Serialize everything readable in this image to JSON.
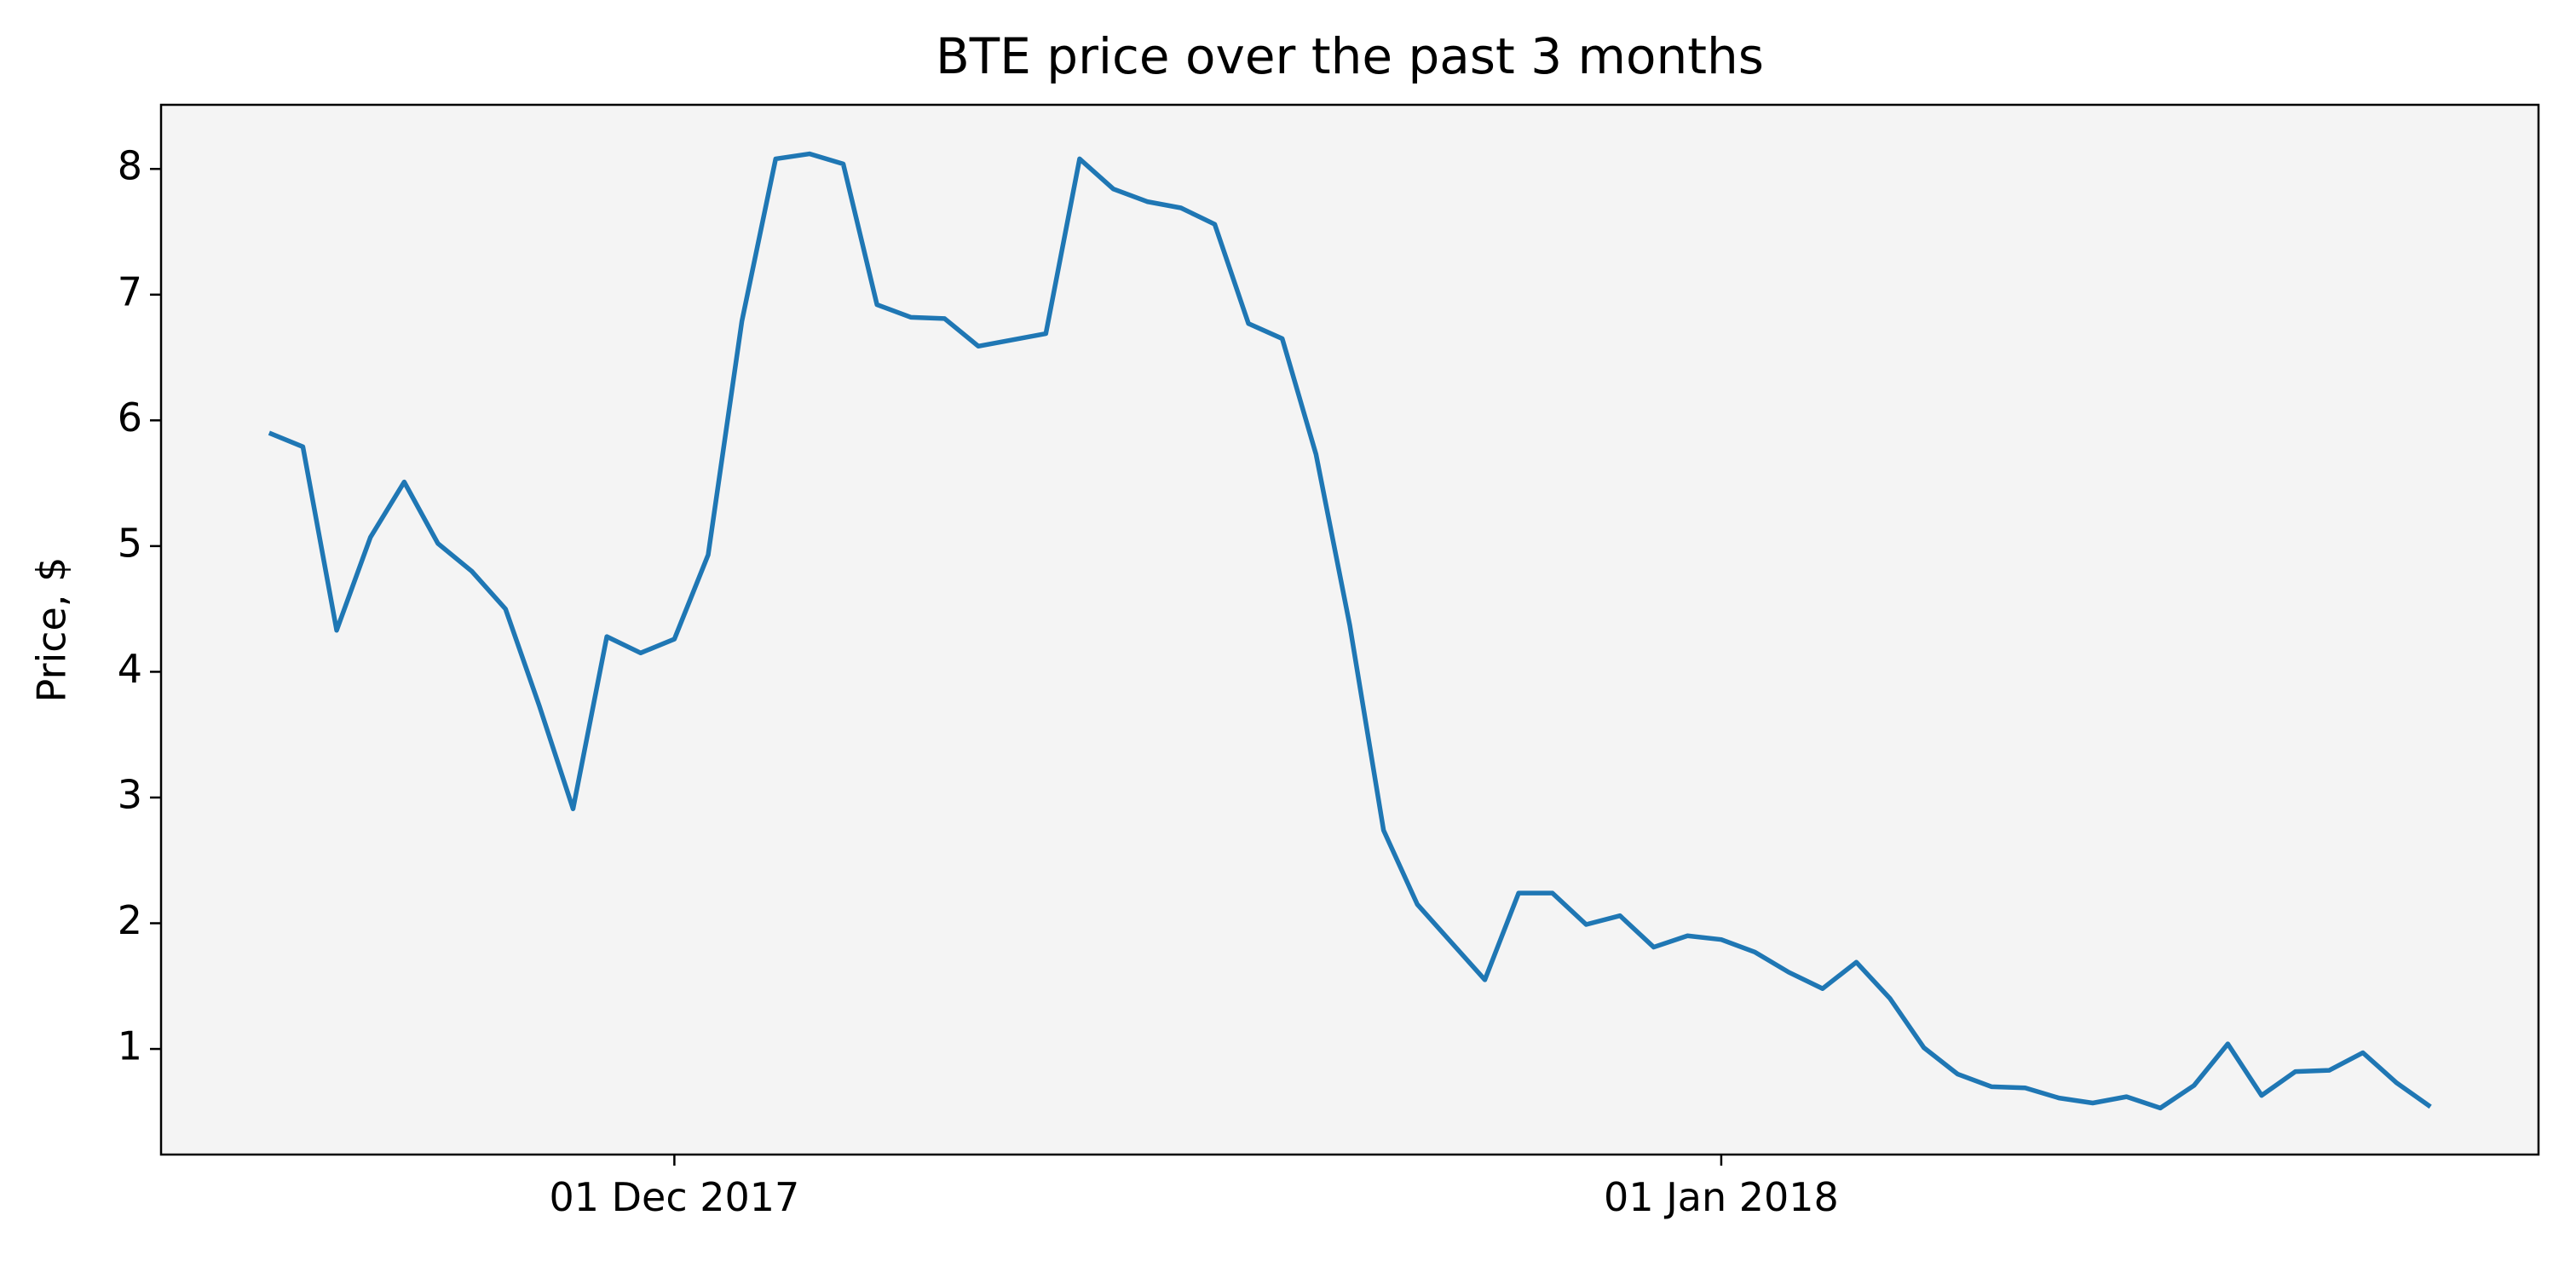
{
  "chart_data": {
    "type": "line",
    "title": "BTE price over the past 3 months",
    "ylabel": "Price, $",
    "x": [
      "2017-11-19",
      "2017-11-20",
      "2017-11-21",
      "2017-11-22",
      "2017-11-23",
      "2017-11-24",
      "2017-11-25",
      "2017-11-26",
      "2017-11-27",
      "2017-11-28",
      "2017-11-29",
      "2017-11-30",
      "2017-12-01",
      "2017-12-02",
      "2017-12-03",
      "2017-12-04",
      "2017-12-05",
      "2017-12-06",
      "2017-12-07",
      "2017-12-08",
      "2017-12-09",
      "2017-12-10",
      "2017-12-11",
      "2017-12-12",
      "2017-12-13",
      "2017-12-14",
      "2017-12-15",
      "2017-12-16",
      "2017-12-17",
      "2017-12-18",
      "2017-12-19",
      "2017-12-20",
      "2017-12-21",
      "2017-12-22",
      "2017-12-23",
      "2017-12-24",
      "2017-12-25",
      "2017-12-26",
      "2017-12-27",
      "2017-12-28",
      "2017-12-29",
      "2017-12-30",
      "2017-12-31",
      "2018-01-01",
      "2018-01-02",
      "2018-01-03",
      "2018-01-04",
      "2018-01-05",
      "2018-01-06",
      "2018-01-07",
      "2018-01-08",
      "2018-01-09",
      "2018-01-10",
      "2018-01-11",
      "2018-01-12",
      "2018-01-13",
      "2018-01-14",
      "2018-01-15",
      "2018-01-16",
      "2018-01-17",
      "2018-01-18",
      "2018-01-19",
      "2018-01-20",
      "2018-01-21",
      "2018-01-22"
    ],
    "series": [
      {
        "name": "BTE",
        "color": "#1f77b4",
        "values": [
          5.9,
          5.79,
          4.33,
          5.07,
          5.51,
          5.02,
          4.8,
          4.5,
          3.73,
          2.91,
          4.28,
          4.15,
          4.26,
          4.93,
          6.79,
          8.08,
          8.12,
          8.04,
          6.92,
          6.82,
          6.81,
          6.59,
          6.64,
          6.69,
          8.08,
          7.84,
          7.74,
          7.69,
          7.56,
          6.77,
          6.65,
          5.73,
          4.37,
          2.74,
          2.15,
          1.85,
          1.55,
          2.24,
          2.24,
          1.99,
          2.06,
          1.81,
          1.9,
          1.87,
          1.77,
          1.61,
          1.48,
          1.69,
          1.4,
          1.01,
          0.8,
          0.7,
          0.69,
          0.61,
          0.57,
          0.62,
          0.53,
          0.71,
          1.04,
          0.63,
          0.82,
          0.83,
          0.97,
          0.73,
          0.54
        ]
      }
    ],
    "xlim": [
      "2017-11-15T19:12",
      "2018-01-25T04:48"
    ],
    "xticks": [
      {
        "value": "2017-12-01",
        "label": "01 Dec 2017"
      },
      {
        "value": "2018-01-01",
        "label": "01 Jan 2018"
      }
    ],
    "ylim": [
      0.16,
      8.51
    ],
    "yticks": [
      1,
      2,
      3,
      4,
      5,
      6,
      7,
      8
    ],
    "background": "#f4f4f4"
  }
}
